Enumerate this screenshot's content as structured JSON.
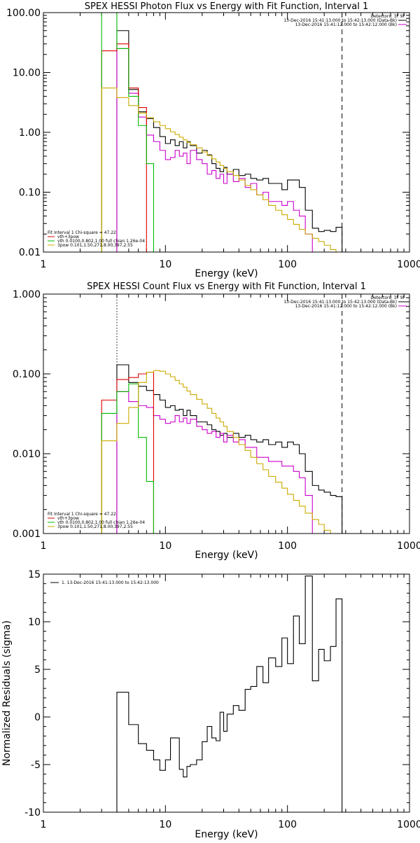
{
  "chart_data": [
    {
      "type": "line",
      "title": "SPEX HESSI Photon Flux vs Energy with Fit Function, Interval 1",
      "xlabel": "Energy (keV)",
      "ylabel": "",
      "xscale": "log",
      "yscale": "log",
      "xlim": [
        1,
        1000
      ],
      "ylim": [
        0.01,
        100
      ],
      "x_ticks": [
        "1",
        "10",
        "100",
        "1000"
      ],
      "y_ticks": [
        {
          "v": 0.01,
          "label": "0.01"
        },
        {
          "v": 0.1,
          "label": "0.10"
        },
        {
          "v": 1,
          "label": "1.00"
        },
        {
          "v": 10,
          "label": "10.00"
        },
        {
          "v": 100,
          "label": "100.00"
        }
      ],
      "vlines": [
        {
          "x": 4,
          "color": "#000000",
          "style": "dotted"
        },
        {
          "x": 280,
          "color": "#000000",
          "style": "dashed"
        }
      ],
      "legend_top": [
        {
          "text": "Detectors: 3F 9F",
          "color": null
        },
        {
          "text": "13-Dec-2016 15:41:13.000 to 15:42:13.000 (Data-Bk)",
          "color": "#000000"
        },
        {
          "text": "13-Dec-2016 15:41:12.000 to 15:42:12.000 (Bk)",
          "color": "#cc00cc"
        }
      ],
      "legend_bottom": [
        {
          "text": "Fit Interval 1    Chi-square = 47.22",
          "color": null
        },
        {
          "text": "vth+3pow",
          "color": "#dd0000"
        },
        {
          "text": "vth 0.0100,0.802,1.00  full chian 1.26e-04",
          "color": "#00bb00"
        },
        {
          "text": "3pow 0.101,1.50,271,8.00,397,2.55",
          "color": "#ccaa00"
        }
      ],
      "series": [
        {
          "name": "Data-Bk",
          "color": "#000000",
          "edges": [
            4,
            5,
            6,
            7,
            8,
            9,
            10,
            11,
            12,
            13,
            14,
            15,
            16,
            18,
            20,
            22,
            24,
            26,
            28,
            30,
            32,
            36,
            40,
            45,
            50,
            56,
            63,
            70,
            80,
            90,
            100,
            112,
            125,
            140,
            160,
            180,
            200,
            225,
            250,
            280
          ],
          "values": [
            50,
            5.2,
            2.2,
            1.7,
            1.2,
            0.85,
            0.65,
            0.75,
            0.6,
            0.7,
            0.55,
            0.7,
            0.6,
            0.45,
            0.5,
            0.42,
            0.3,
            0.25,
            0.22,
            0.26,
            0.2,
            0.24,
            0.19,
            0.2,
            0.17,
            0.16,
            0.17,
            0.14,
            0.14,
            0.11,
            0.16,
            0.16,
            0.12,
            0.05,
            0.025,
            0.022,
            0.023,
            0.022,
            0.026
          ]
        },
        {
          "name": "Bk",
          "color": "#cc00cc",
          "edges": [
            4,
            5,
            6,
            7,
            8,
            9,
            10,
            11,
            12,
            13,
            14,
            15,
            16,
            18,
            20,
            22,
            24,
            26,
            28,
            30,
            32,
            36,
            40,
            45,
            50,
            56,
            63,
            70,
            80,
            90,
            100,
            112,
            125,
            140,
            160
          ],
          "values": [
            25,
            4.5,
            1.8,
            0.9,
            0.7,
            0.5,
            0.35,
            0.38,
            0.5,
            0.4,
            0.45,
            0.3,
            0.5,
            0.35,
            0.3,
            0.2,
            0.23,
            0.17,
            0.2,
            0.14,
            0.2,
            0.15,
            0.17,
            0.12,
            0.14,
            0.09,
            0.1,
            0.07,
            0.07,
            0.06,
            0.07,
            0.05,
            0.04,
            0.02
          ]
        },
        {
          "name": "vth+3pow",
          "color": "#dd0000",
          "edges": [
            3,
            4,
            5,
            6,
            7
          ],
          "values": [
            23,
            30,
            5.5,
            2.6
          ]
        },
        {
          "name": "vth",
          "color": "#00bb00",
          "edges": [
            3,
            4,
            5,
            6,
            7,
            8
          ],
          "values": [
            100,
            25,
            4,
            1.3,
            0.3
          ]
        },
        {
          "name": "3pow",
          "color": "#ccaa00",
          "edges": [
            3,
            4,
            5,
            6,
            7,
            8,
            9,
            10,
            11,
            12,
            13,
            14,
            15,
            16,
            18,
            20,
            22,
            24,
            26,
            28,
            30,
            32,
            36,
            40,
            45,
            50,
            56,
            63,
            70,
            80,
            90,
            100,
            112,
            125,
            140,
            160,
            180,
            200,
            225,
            250,
            280
          ],
          "values": [
            5.5,
            3.8,
            2.8,
            2.1,
            1.75,
            1.5,
            1.3,
            1.15,
            1.02,
            0.92,
            0.83,
            0.75,
            0.68,
            0.62,
            0.55,
            0.47,
            0.41,
            0.36,
            0.32,
            0.28,
            0.25,
            0.22,
            0.19,
            0.16,
            0.13,
            0.11,
            0.09,
            0.075,
            0.06,
            0.05,
            0.042,
            0.035,
            0.029,
            0.024,
            0.02,
            0.017,
            0.015,
            0.013,
            0.011,
            0.01
          ]
        }
      ]
    },
    {
      "type": "line",
      "title": "SPEX HESSI Count Flux vs Energy with Fit Function, Interval 1",
      "xlabel": "Energy (keV)",
      "ylabel": "",
      "xscale": "log",
      "yscale": "log",
      "xlim": [
        1,
        1000
      ],
      "ylim": [
        0.001,
        1
      ],
      "x_ticks": [
        "1",
        "10",
        "100",
        "1000"
      ],
      "y_ticks": [
        {
          "v": 0.001,
          "label": "0.001"
        },
        {
          "v": 0.01,
          "label": "0.010"
        },
        {
          "v": 0.1,
          "label": "0.100"
        },
        {
          "v": 1,
          "label": "1.000"
        }
      ],
      "vlines": [
        {
          "x": 4,
          "color": "#000000",
          "style": "dotted"
        },
        {
          "x": 280,
          "color": "#000000",
          "style": "dashed"
        }
      ],
      "legend_top": [
        {
          "text": "Detectors: 3F 9F",
          "color": null
        },
        {
          "text": "13-Dec-2016 15:41:13.000 to 15:42:13.000 (Data-Bk)",
          "color": "#000000"
        },
        {
          "text": "13-Dec-2016 15:41:12.000 to 15:42:12.000 (Bk)",
          "color": "#cc00cc"
        }
      ],
      "legend_bottom": [
        {
          "text": "Fit Interval 1    Chi-square = 47.22",
          "color": null
        },
        {
          "text": "vth+3pow",
          "color": "#dd0000"
        },
        {
          "text": "vth 0.0100,0.802,1.00  full chian 1.26e-04",
          "color": "#00bb00"
        },
        {
          "text": "3pow 0.101,1.50,271,8.00,397,2.55",
          "color": "#ccaa00"
        }
      ],
      "series": [
        {
          "name": "Data-Bk",
          "color": "#000000",
          "edges": [
            4,
            5,
            6,
            7,
            8,
            9,
            10,
            11,
            12,
            13,
            14,
            15,
            16,
            18,
            20,
            22,
            24,
            26,
            28,
            30,
            32,
            36,
            40,
            45,
            50,
            56,
            63,
            70,
            80,
            90,
            100,
            112,
            125,
            140,
            160,
            180,
            200,
            225,
            250,
            280
          ],
          "values": [
            0.13,
            0.078,
            0.07,
            0.062,
            0.055,
            0.047,
            0.038,
            0.04,
            0.035,
            0.036,
            0.03,
            0.035,
            0.03,
            0.025,
            0.025,
            0.023,
            0.02,
            0.019,
            0.017,
            0.018,
            0.016,
            0.018,
            0.016,
            0.017,
            0.015,
            0.014,
            0.015,
            0.013,
            0.014,
            0.012,
            0.014,
            0.013,
            0.01,
            0.006,
            0.004,
            0.0035,
            0.0033,
            0.003,
            0.0029
          ]
        },
        {
          "name": "Bk",
          "color": "#cc00cc",
          "edges": [
            4,
            5,
            6,
            7,
            8,
            9,
            10,
            11,
            12,
            13,
            14,
            15,
            16,
            18,
            20,
            22,
            24,
            26,
            28,
            30,
            32,
            36,
            40,
            45,
            50,
            56,
            63,
            70,
            80,
            90,
            100,
            112,
            125,
            140,
            160
          ],
          "values": [
            0.06,
            0.045,
            0.04,
            0.038,
            0.03,
            0.027,
            0.024,
            0.025,
            0.03,
            0.025,
            0.028,
            0.024,
            0.027,
            0.022,
            0.02,
            0.018,
            0.019,
            0.016,
            0.018,
            0.014,
            0.017,
            0.014,
            0.015,
            0.012,
            0.012,
            0.009,
            0.009,
            0.008,
            0.008,
            0.007,
            0.007,
            0.006,
            0.005,
            0.003
          ]
        },
        {
          "name": "vth+3pow",
          "color": "#dd0000",
          "edges": [
            3,
            4,
            5,
            6,
            7,
            8
          ],
          "values": [
            0.047,
            0.085,
            0.09,
            0.1,
            0.105
          ]
        },
        {
          "name": "vth",
          "color": "#00bb00",
          "edges": [
            3,
            4,
            5,
            6,
            7,
            8
          ],
          "values": [
            0.032,
            0.06,
            0.075,
            0.016,
            0.0045
          ]
        },
        {
          "name": "3pow",
          "color": "#ccaa00",
          "edges": [
            3,
            4,
            5,
            6,
            7,
            8,
            9,
            10,
            11,
            12,
            13,
            14,
            15,
            16,
            18,
            20,
            22,
            24,
            26,
            28,
            30,
            32,
            36,
            40,
            45,
            50,
            56,
            63,
            70,
            80,
            90,
            100,
            112,
            125,
            140,
            160,
            180,
            200,
            225,
            250,
            280
          ],
          "values": [
            0.0145,
            0.024,
            0.038,
            0.078,
            0.105,
            0.11,
            0.108,
            0.1,
            0.092,
            0.083,
            0.075,
            0.068,
            0.061,
            0.055,
            0.048,
            0.042,
            0.037,
            0.032,
            0.028,
            0.025,
            0.022,
            0.019,
            0.016,
            0.013,
            0.011,
            0.009,
            0.0075,
            0.0063,
            0.0052,
            0.0044,
            0.0037,
            0.0031,
            0.0026,
            0.0022,
            0.0018,
            0.0015,
            0.0013,
            0.0011,
            0.001,
            0.001
          ]
        }
      ]
    },
    {
      "type": "line",
      "title": "",
      "xlabel": "Energy (keV)",
      "ylabel": "Normalized Residuals (sigma)",
      "xscale": "log",
      "yscale": "linear",
      "xlim": [
        1,
        1000
      ],
      "ylim": [
        -10,
        15
      ],
      "x_ticks": [
        "1",
        "10",
        "100",
        "1000"
      ],
      "y_ticks": [
        {
          "v": -10,
          "label": "-10"
        },
        {
          "v": -5,
          "label": "-5"
        },
        {
          "v": 0,
          "label": "0"
        },
        {
          "v": 5,
          "label": "5"
        },
        {
          "v": 10,
          "label": "10"
        },
        {
          "v": 15,
          "label": "15"
        }
      ],
      "vlines": [],
      "legend_top": [
        {
          "text": "1. 13-Dec-2016 15:41:13.000 to 15:42:13.000",
          "color": "#000000"
        }
      ],
      "legend_bottom": [],
      "series": [
        {
          "name": "1. 13-Dec-2016 15:41:13.000 to 15:42:13.000",
          "color": "#000000",
          "drop_to": -10,
          "edges": [
            4,
            5,
            6,
            7,
            8,
            9,
            10,
            11,
            12,
            13,
            14,
            15,
            16,
            18,
            20,
            22,
            24,
            26,
            28,
            30,
            32,
            36,
            40,
            45,
            50,
            56,
            63,
            70,
            80,
            90,
            100,
            112,
            125,
            140,
            160,
            180,
            200,
            225,
            250,
            280
          ],
          "values": [
            2.6,
            -0.8,
            -2.8,
            -3.5,
            -4.5,
            -5.6,
            -4.5,
            -2.2,
            -2.2,
            -5.5,
            -6.3,
            -5.2,
            -5,
            -4.5,
            -2.6,
            -1,
            -2.2,
            -2.5,
            0.5,
            -1.5,
            0.3,
            1.2,
            0.7,
            2.9,
            3.2,
            5.3,
            3.6,
            6.2,
            5.3,
            8.3,
            5.6,
            10.6,
            7.7,
            14.8,
            3.8,
            7.1,
            5.9,
            7.4,
            12.4
          ]
        }
      ]
    }
  ]
}
